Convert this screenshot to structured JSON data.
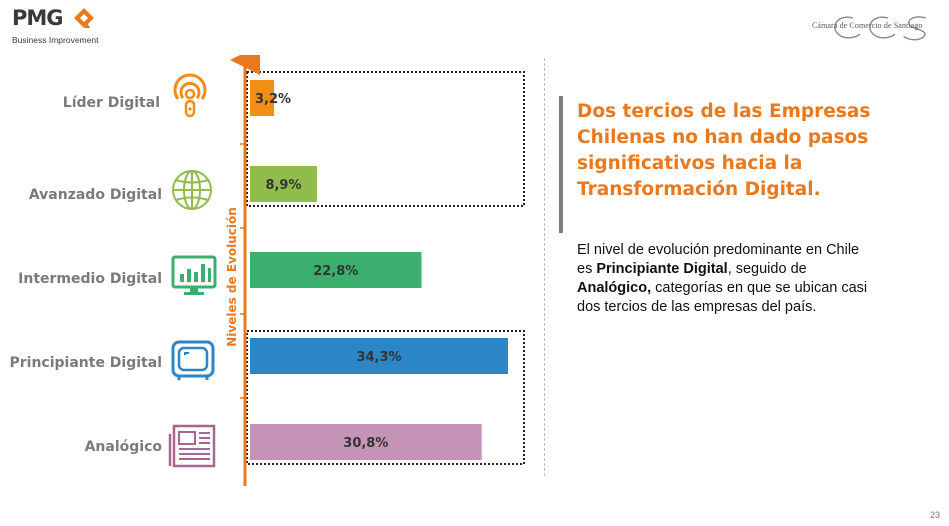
{
  "header": {
    "pmg_logo_text": "PMG",
    "pmg_logo_subtitle": "Business Improvement",
    "ccs_logo_text": "Cámara de Comercio de Santiago"
  },
  "colors": {
    "accent": "#e8791e",
    "lider": "#f18e14",
    "avanzado": "#8fbc4a",
    "intermedio": "#3bb06e",
    "principiante": "#2c85c5",
    "analogico": "#c493b5"
  },
  "chart_data": {
    "type": "bar",
    "orientation": "horizontal",
    "title": "",
    "xlabel": "",
    "ylabel": "Niveles de Evolución",
    "xlim": [
      0,
      34.3
    ],
    "categories": [
      "Líder Digital",
      "Avanzado Digital",
      "Intermedio Digital",
      "Principiante Digital",
      "Analógico"
    ],
    "values": [
      3.2,
      8.9,
      22.8,
      34.3,
      30.8
    ],
    "value_labels": [
      "3,2%",
      "8,9%",
      "22,8%",
      "34,3%",
      "30,8%"
    ],
    "icons": [
      "podcast-icon",
      "globe-icon",
      "monitor-chart-icon",
      "tv-icon",
      "newspaper-icon"
    ],
    "grid": false,
    "legend": "none"
  },
  "headline": "Dos tercios de las Empresas Chilenas no han dado pasos significativos hacia la Transformación Digital.",
  "body": {
    "part1": "El nivel de evolución predominante en Chile es ",
    "bold1": "Principiante Digital",
    "part2": ", seguido de ",
    "bold2": "Analógico,",
    "part3": " categorías en que se ubican casi dos tercios de las empresas del país."
  },
  "page_number": "23"
}
